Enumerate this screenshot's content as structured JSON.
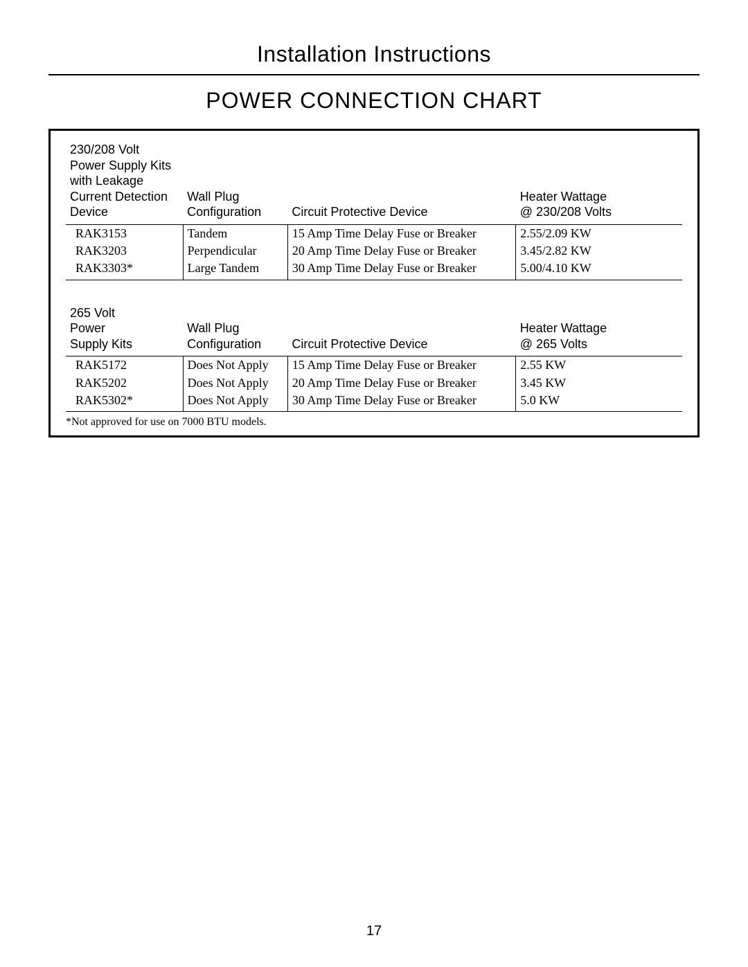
{
  "header": "Installation Instructions",
  "title": "POWER CONNECTION CHART",
  "table1": {
    "headers": {
      "c1": "230/208 Volt\nPower Supply Kits\nwith Leakage\nCurrent Detection\nDevice",
      "c2": "Wall Plug\nConfiguration",
      "c3": "Circuit Protective Device",
      "c4": "Heater Wattage\n@ 230/208 Volts"
    },
    "rows": [
      {
        "c1": "RAK3153",
        "c2": "Tandem",
        "c3": "15 Amp Time Delay Fuse or Breaker",
        "c4": "2.55/2.09 KW"
      },
      {
        "c1": "RAK3203",
        "c2": "Perpendicular",
        "c3": "20 Amp Time Delay Fuse or Breaker",
        "c4": "3.45/2.82 KW"
      },
      {
        "c1": "RAK3303*",
        "c2": "Large Tandem",
        "c3": "30 Amp Time Delay Fuse or Breaker",
        "c4": "5.00/4.10 KW"
      }
    ]
  },
  "table2": {
    "headers": {
      "c1": "265 Volt\nPower\nSupply Kits",
      "c2": "Wall Plug\nConfiguration",
      "c3": "Circuit Protective Device",
      "c4": "Heater Wattage\n@ 265 Volts"
    },
    "rows": [
      {
        "c1": "RAK5172",
        "c2": "Does Not Apply",
        "c3": "15 Amp Time Delay Fuse or Breaker",
        "c4": "2.55 KW"
      },
      {
        "c1": "RAK5202",
        "c2": "Does Not Apply",
        "c3": "20 Amp Time Delay Fuse or Breaker",
        "c4": "3.45 KW"
      },
      {
        "c1": "RAK5302*",
        "c2": "Does Not Apply",
        "c3": "30 Amp Time Delay Fuse or Breaker",
        "c4": "5.0 KW"
      }
    ]
  },
  "footnote": "*Not approved for use on 7000 BTU models.",
  "page_number": "17"
}
